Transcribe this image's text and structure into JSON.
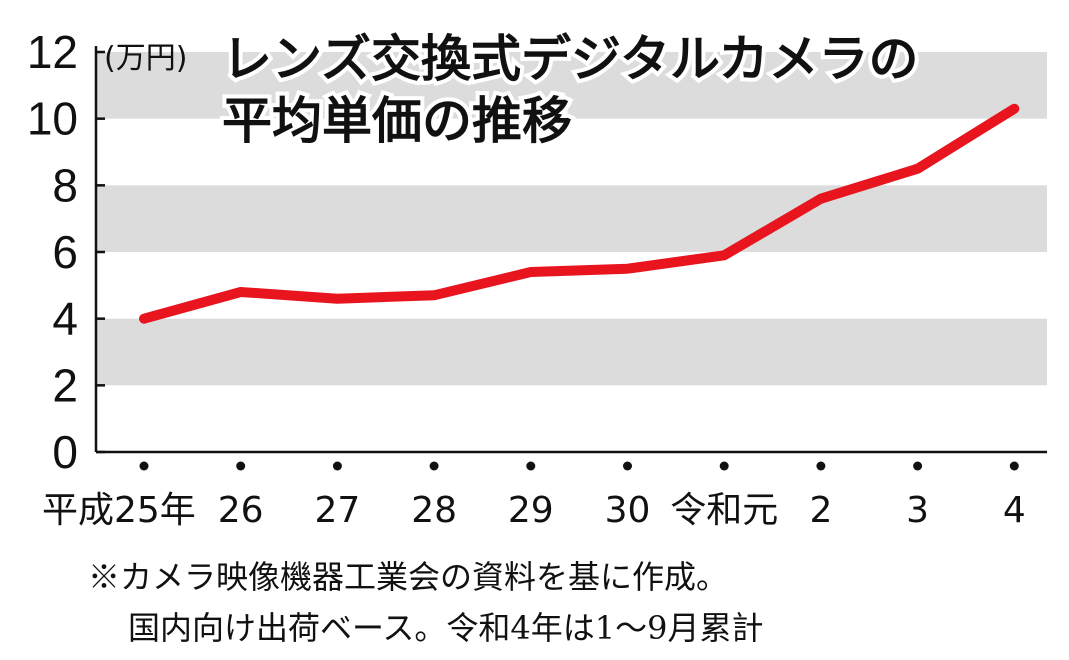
{
  "chart_data": {
    "type": "line",
    "title_line1": "レンズ交換式デジタルカメラの",
    "title_line2": "平均単価の推移",
    "unit_label": "(万円)",
    "categories": [
      "平成25年",
      "26",
      "27",
      "28",
      "29",
      "30",
      "令和元",
      "2",
      "3",
      "4"
    ],
    "series": [
      {
        "values": [
          4.0,
          4.8,
          4.6,
          4.7,
          5.4,
          5.5,
          5.9,
          7.6,
          8.5,
          10.3
        ]
      }
    ],
    "ylim": [
      0,
      12
    ],
    "yticks": [
      0,
      2,
      4,
      6,
      8,
      10,
      12
    ],
    "grid": "alternating gray bands",
    "line_color": "#e8151f",
    "band_color": "#dcdcdc"
  },
  "notes": {
    "line1": "※カメラ映像機器工業会の資料を基に作成。",
    "line2": "国内向け出荷ベース。令和4年は1～9月累計"
  }
}
